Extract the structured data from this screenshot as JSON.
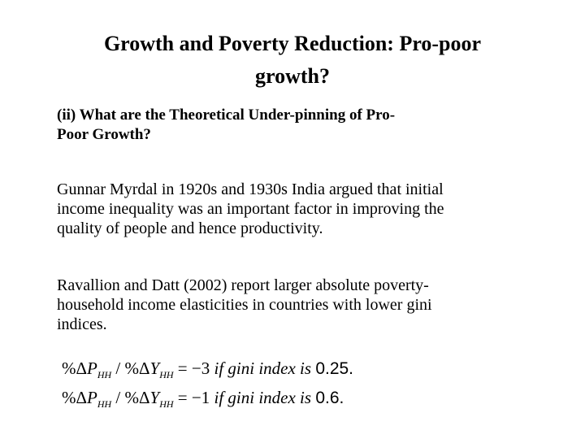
{
  "title": {
    "line1": "Growth and Poverty Reduction: Pro-poor",
    "line2": "growth?"
  },
  "subheading": {
    "line1": "(ii)   What are the Theoretical Under-pinning of Pro-",
    "line2": "Poor Growth?"
  },
  "paragraphs": [
    {
      "lines": [
        "Gunnar Myrdal in 1920s and 1930s India argued that initial",
        "income inequality was an important factor in improving the",
        "quality of people and hence productivity."
      ]
    },
    {
      "lines": [
        "Ravallion and Datt (2002) report larger absolute poverty-",
        "household income elasticities in countries with lower gini",
        "indices."
      ]
    }
  ],
  "equations": [
    {
      "pct1": "%Δ",
      "var1": "P",
      "sub1": "HH",
      "slash": " / ",
      "pct2": "%Δ",
      "var2": "Y",
      "sub2": "HH",
      "eq": " = −3",
      "cond": " if  gini index is ",
      "value": "0.25."
    },
    {
      "pct1": "%Δ",
      "var1": "P",
      "sub1": "HH",
      "slash": " / ",
      "pct2": "%Δ",
      "var2": "Y",
      "sub2": "HH",
      "eq": " = −1",
      "cond": " if  gini index is ",
      "value": "0.6."
    }
  ]
}
